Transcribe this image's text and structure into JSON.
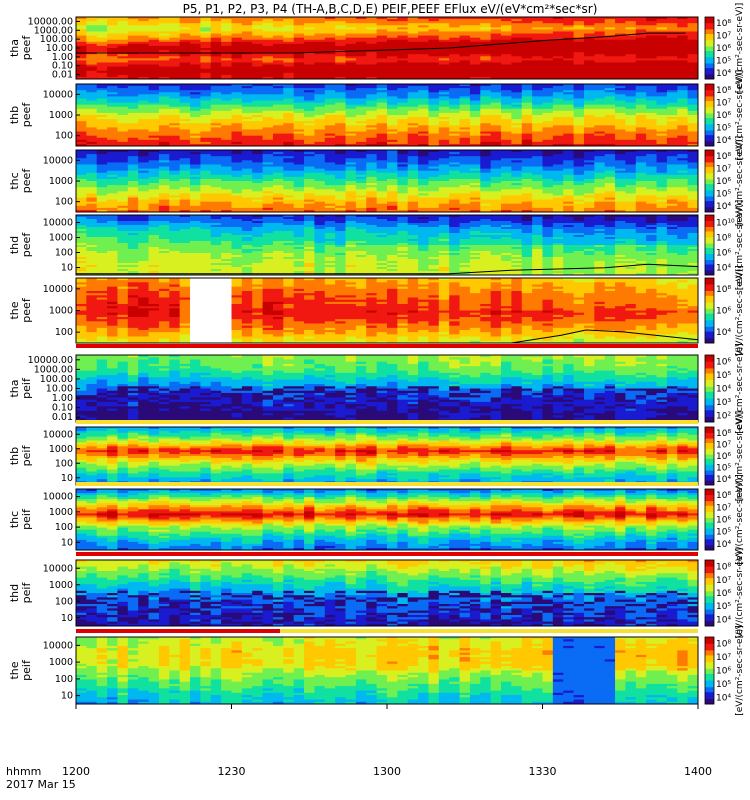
{
  "title": "P5, P1, P2, P3, P4 (TH-A,B,C,D,E) PEIF,PEEF EFlux eV/(eV*cm²*sec*sr)",
  "footer": {
    "line1": "hhmm",
    "line2": "2017 Mar 15"
  },
  "colors": {
    "colormap": [
      "#2a0a78",
      "#1a1ad0",
      "#0a6cf4",
      "#00b8f0",
      "#10e0a0",
      "#70f050",
      "#d8f020",
      "#ffc800",
      "#ff7a00",
      "#f01810",
      "#c80000"
    ],
    "overlay_line": "#000000",
    "divider_red": "#e00000",
    "divider_yellow": "#f8e030"
  },
  "chart_data": {
    "type": "heatmap",
    "x_axis": {
      "ticks": [
        "1200",
        "1230",
        "1300",
        "1330",
        "1400"
      ],
      "range": [
        "1200",
        "1400"
      ]
    },
    "panels": [
      {
        "id": "tha-peef",
        "label_line1": "tha",
        "label_line2": "peef",
        "yticks": [
          "10000.00",
          "1000.00",
          "100.00",
          "10.00",
          "1.00",
          "0.10",
          "0.01"
        ],
        "cbar_ticks": [
          "10⁸",
          "10⁷",
          "10⁶",
          "10⁵",
          "10⁴"
        ],
        "cbar_min": 4,
        "cbar_max": 8,
        "unit": "[eV/(cm²-sec-sr-eV)]",
        "band_levels": [
          0.7,
          0.55,
          0.72,
          0.95,
          0.78,
          0.98,
          0.85
        ],
        "gradient": 0.2,
        "seed": 11,
        "overlay": [
          [
            0,
            0.42
          ],
          [
            0.35,
            0.42
          ],
          [
            0.6,
            0.5
          ],
          [
            0.75,
            0.62
          ],
          [
            0.85,
            0.68
          ],
          [
            0.92,
            0.74
          ],
          [
            0.98,
            0.74
          ]
        ]
      },
      {
        "id": "thb-peef",
        "label_line1": "thb",
        "label_line2": "peef",
        "yticks": [
          "10000",
          "1000",
          "100"
        ],
        "cbar_ticks": [
          "10⁸",
          "10⁷",
          "10⁶",
          "10⁵",
          "10⁴"
        ],
        "cbar_min": 4,
        "cbar_max": 8,
        "unit": "[eV/(cm²-sec-sr-eV)]",
        "band_levels": [
          0.15,
          0.35,
          0.6,
          0.75,
          0.9
        ],
        "gradient": 0.0,
        "seed": 23
      },
      {
        "id": "thc-peef",
        "label_line1": "thc",
        "label_line2": "peef",
        "yticks": [
          "10000",
          "1000",
          "100"
        ],
        "cbar_ticks": [
          "10⁸",
          "10⁷",
          "10⁶",
          "10⁵",
          "10⁴"
        ],
        "cbar_min": 4,
        "cbar_max": 8,
        "unit": "[eV/(cm²-sec-sr-eV)]",
        "band_levels": [
          0.1,
          0.25,
          0.45,
          0.65,
          0.8
        ],
        "gradient": 0.0,
        "seed": 37
      },
      {
        "id": "thd-peef",
        "label_line1": "thd",
        "label_line2": "peef",
        "yticks": [
          "10000",
          "1000",
          "100",
          "10"
        ],
        "cbar_ticks": [
          "10¹⁰",
          "10⁸",
          "10⁶",
          "10⁴"
        ],
        "cbar_min": 4,
        "cbar_max": 10,
        "unit": "[eV/(cm²-sec-sr-eV)]",
        "band_levels": [
          0.2,
          0.4,
          0.5,
          0.58,
          0.6
        ],
        "gradient": -0.15,
        "seed": 41,
        "overlay": [
          [
            0,
            0.02
          ],
          [
            0.6,
            0.02
          ],
          [
            0.7,
            0.08
          ],
          [
            0.85,
            0.12
          ],
          [
            0.92,
            0.18
          ],
          [
            1,
            0.14
          ]
        ]
      },
      {
        "id": "the-peef",
        "label_line1": "the",
        "label_line2": "peef",
        "yticks": [
          "10000",
          "1000",
          "100"
        ],
        "cbar_ticks": [
          "10⁸",
          "10⁶",
          "10⁴"
        ],
        "cbar_min": 4,
        "cbar_max": 9,
        "unit": "[eV/(cm²-sec-sr-eV)]",
        "band_levels": [
          0.75,
          0.85,
          0.9,
          0.78,
          0.6
        ],
        "gradient": -0.1,
        "seed": 53,
        "gap": [
          0.18,
          0.235
        ],
        "overlay": [
          [
            0.7,
            0.0
          ],
          [
            0.78,
            0.12
          ],
          [
            0.82,
            0.2
          ],
          [
            0.88,
            0.17
          ],
          [
            1,
            0.05
          ]
        ]
      },
      {
        "id": "tha-peif",
        "label_line1": "tha",
        "label_line2": "peif",
        "yticks": [
          "10000.00",
          "1000.00",
          "100.00",
          "10.00",
          "1.00",
          "0.10",
          "0.01"
        ],
        "cbar_ticks": [
          "10⁶",
          "10⁵",
          "10⁴",
          "10³",
          "10²"
        ],
        "cbar_min": 2,
        "cbar_max": 6,
        "unit": "[eV/(cm²-sec-sr-eV)]",
        "band_levels": [
          0.5,
          0.45,
          0.3,
          0.15,
          0.1,
          0.05
        ],
        "gradient": 0.05,
        "seed": 61,
        "speckle": true
      },
      {
        "id": "thb-peif",
        "label_line1": "thb",
        "label_line2": "peif",
        "yticks": [
          "10000",
          "1000",
          "100",
          "10"
        ],
        "cbar_ticks": [
          "10⁸",
          "10⁷",
          "10⁶",
          "10⁵",
          "10⁴"
        ],
        "cbar_min": 4,
        "cbar_max": 8,
        "unit": "[eV/(cm²-sec-sr-eV)]",
        "band_levels": [
          0.3,
          0.55,
          0.88,
          0.6,
          0.4,
          0.25
        ],
        "gradient": 0.0,
        "seed": 71
      },
      {
        "id": "thc-peif",
        "label_line1": "thc",
        "label_line2": "peif",
        "yticks": [
          "10000",
          "1000",
          "100",
          "10"
        ],
        "cbar_ticks": [
          "10⁸",
          "10⁷",
          "10⁶",
          "10⁵",
          "10⁴"
        ],
        "cbar_min": 4,
        "cbar_max": 8,
        "unit": "[eV/(cm²-sec-sr-eV)]",
        "band_levels": [
          0.25,
          0.6,
          0.9,
          0.55,
          0.35,
          0.2
        ],
        "gradient": 0.0,
        "seed": 83
      },
      {
        "id": "thd-peif",
        "label_line1": "thd",
        "label_line2": "peif",
        "yticks": [
          "10000",
          "1000",
          "100",
          "10"
        ],
        "cbar_ticks": [
          "10⁸",
          "10⁷",
          "10⁶",
          "10⁵",
          "10⁴"
        ],
        "cbar_min": 4,
        "cbar_max": 8,
        "unit": "[eV/(cm²-sec-sr-eV)]",
        "band_levels": [
          0.6,
          0.45,
          0.3,
          0.2,
          0.15,
          0.1
        ],
        "gradient": 0.1,
        "seed": 97,
        "speckle": true
      },
      {
        "id": "the-peif",
        "label_line1": "the",
        "label_line2": "peif",
        "yticks": [
          "10000",
          "1000",
          "100",
          "10"
        ],
        "cbar_ticks": [
          "10⁸",
          "10⁷",
          "10⁶",
          "10⁵",
          "10⁴"
        ],
        "cbar_min": 4,
        "cbar_max": 8,
        "unit": "[eV/(cm²-sec-sr-eV)]",
        "band_levels": [
          0.55,
          0.62,
          0.6,
          0.5,
          0.4,
          0.3
        ],
        "gradient": 0.1,
        "seed": 101,
        "dark_block": [
          0.76,
          0.86
        ]
      }
    ]
  }
}
